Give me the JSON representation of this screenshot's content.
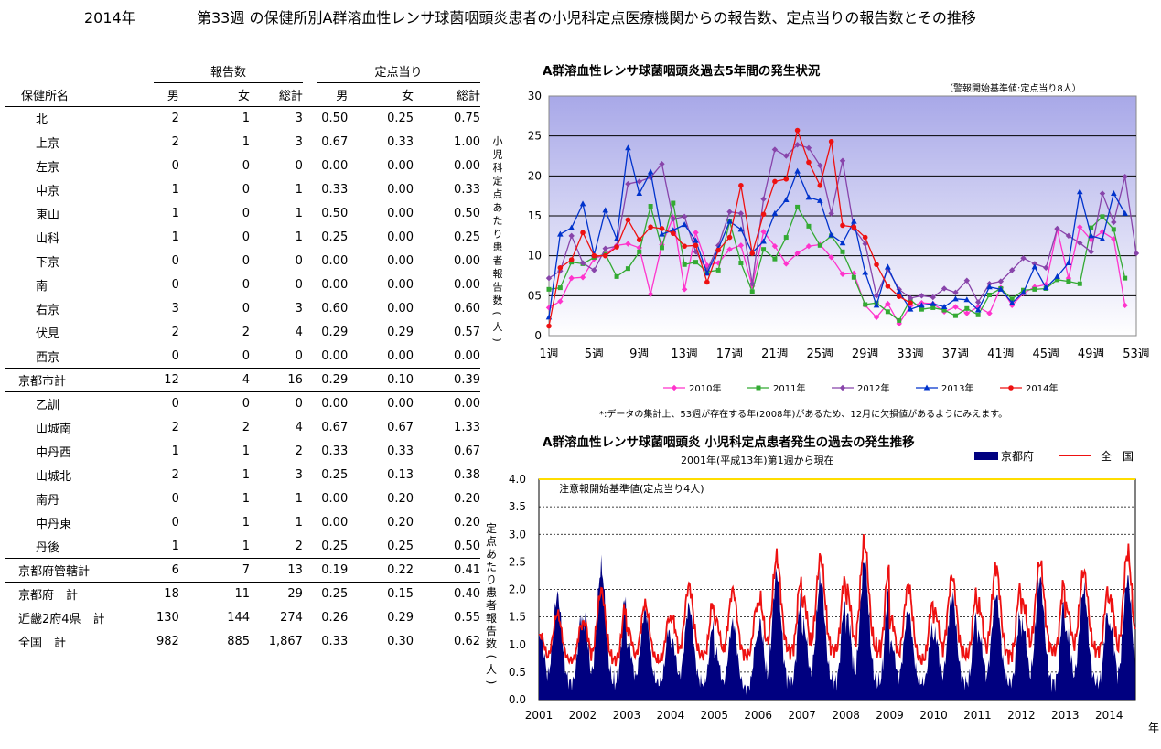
{
  "header": {
    "year": "2014年",
    "title": "第33週 の保健所別A群溶血性レンサ球菌咽頭炎患者の小児科定点医療機関からの報告数、定点当りの報告数とその推移"
  },
  "table": {
    "group_reports": "報告数",
    "group_per_point": "定点当り",
    "col_name": "保健所名",
    "col_male": "男",
    "col_female": "女",
    "col_total": "総計",
    "col_male2": "男",
    "col_female2": "女",
    "col_total2": "総計",
    "rows": [
      {
        "name": "北",
        "m": "2",
        "f": "1",
        "t": "3",
        "pm": "0.50",
        "pf": "0.25",
        "pt": "0.75"
      },
      {
        "name": "上京",
        "m": "2",
        "f": "1",
        "t": "3",
        "pm": "0.67",
        "pf": "0.33",
        "pt": "1.00"
      },
      {
        "name": "左京",
        "m": "0",
        "f": "0",
        "t": "0",
        "pm": "0.00",
        "pf": "0.00",
        "pt": "0.00"
      },
      {
        "name": "中京",
        "m": "1",
        "f": "0",
        "t": "1",
        "pm": "0.33",
        "pf": "0.00",
        "pt": "0.33"
      },
      {
        "name": "東山",
        "m": "1",
        "f": "0",
        "t": "1",
        "pm": "0.50",
        "pf": "0.00",
        "pt": "0.50"
      },
      {
        "name": "山科",
        "m": "1",
        "f": "0",
        "t": "1",
        "pm": "0.25",
        "pf": "0.00",
        "pt": "0.25"
      },
      {
        "name": "下京",
        "m": "0",
        "f": "0",
        "t": "0",
        "pm": "0.00",
        "pf": "0.00",
        "pt": "0.00"
      },
      {
        "name": "南",
        "m": "0",
        "f": "0",
        "t": "0",
        "pm": "0.00",
        "pf": "0.00",
        "pt": "0.00"
      },
      {
        "name": "右京",
        "m": "3",
        "f": "0",
        "t": "3",
        "pm": "0.60",
        "pf": "0.00",
        "pt": "0.60"
      },
      {
        "name": "伏見",
        "m": "2",
        "f": "2",
        "t": "4",
        "pm": "0.29",
        "pf": "0.29",
        "pt": "0.57"
      },
      {
        "name": "西京",
        "m": "0",
        "f": "0",
        "t": "0",
        "pm": "0.00",
        "pf": "0.00",
        "pt": "0.00"
      },
      {
        "name": "京都市計",
        "m": "12",
        "f": "4",
        "t": "16",
        "pm": "0.29",
        "pf": "0.10",
        "pt": "0.39",
        "total": true
      },
      {
        "name": "乙訓",
        "m": "0",
        "f": "0",
        "t": "0",
        "pm": "0.00",
        "pf": "0.00",
        "pt": "0.00"
      },
      {
        "name": "山城南",
        "m": "2",
        "f": "2",
        "t": "4",
        "pm": "0.67",
        "pf": "0.67",
        "pt": "1.33"
      },
      {
        "name": "中丹西",
        "m": "1",
        "f": "1",
        "t": "2",
        "pm": "0.33",
        "pf": "0.33",
        "pt": "0.67"
      },
      {
        "name": "山城北",
        "m": "2",
        "f": "1",
        "t": "3",
        "pm": "0.25",
        "pf": "0.13",
        "pt": "0.38"
      },
      {
        "name": "南丹",
        "m": "0",
        "f": "1",
        "t": "1",
        "pm": "0.00",
        "pf": "0.20",
        "pt": "0.20"
      },
      {
        "name": "中丹東",
        "m": "0",
        "f": "1",
        "t": "1",
        "pm": "0.00",
        "pf": "0.20",
        "pt": "0.20"
      },
      {
        "name": "丹後",
        "m": "1",
        "f": "1",
        "t": "2",
        "pm": "0.25",
        "pf": "0.25",
        "pt": "0.50"
      },
      {
        "name": "京都府管轄計",
        "m": "6",
        "f": "7",
        "t": "13",
        "pm": "0.19",
        "pf": "0.22",
        "pt": "0.41",
        "total": true
      },
      {
        "name": "京都府　計",
        "m": "18",
        "f": "11",
        "t": "29",
        "pm": "0.25",
        "pf": "0.15",
        "pt": "0.40",
        "total": true
      },
      {
        "name": "近畿2府4県　計",
        "m": "130",
        "f": "144",
        "t": "274",
        "pm": "0.26",
        "pf": "0.29",
        "pt": "0.55",
        "total": true
      },
      {
        "name": "全国　計",
        "m": "982",
        "f": "885",
        "t": "1,867",
        "pm": "0.33",
        "pf": "0.30",
        "pt": "0.62",
        "total": true
      }
    ]
  },
  "chart_data": [
    {
      "type": "line",
      "title": "A群溶血性レンサ球菌咽頭炎過去5年間の発生状況",
      "note": "（警報開始基準値:定点当り8人）",
      "ylabel": "小児科定点あたり患者報告数(人)",
      "ylim": [
        0,
        30
      ],
      "yticks": [
        "0",
        "05",
        "10",
        "15",
        "20",
        "25",
        "30"
      ],
      "xlim": [
        1,
        53
      ],
      "xticks": [
        {
          "week": 1,
          "label": "1週"
        },
        {
          "week": 5,
          "label": "5週"
        },
        {
          "week": 9,
          "label": "9週"
        },
        {
          "week": 13,
          "label": "13週"
        },
        {
          "week": 17,
          "label": "17週"
        },
        {
          "week": 21,
          "label": "21週"
        },
        {
          "week": 25,
          "label": "25週"
        },
        {
          "week": 29,
          "label": "29週"
        },
        {
          "week": 33,
          "label": "33週"
        },
        {
          "week": 37,
          "label": "37週"
        },
        {
          "week": 41,
          "label": "41週"
        },
        {
          "week": 45,
          "label": "45週"
        },
        {
          "week": 49,
          "label": "49週"
        },
        {
          "week": 53,
          "label": "53週"
        }
      ],
      "footnote": "*:データの集計上、53週が存在する年(2008年)があるため、12月に欠損値があるようにみえます。",
      "series": [
        {
          "name": "2010年",
          "color": "#ff33cc",
          "marker": "diamond",
          "values": [
            3.5,
            4.3,
            7.2,
            7.3,
            9.6,
            10.2,
            11.3,
            11.5,
            11.0,
            5.2,
            11.4,
            14.8,
            5.8,
            12.9,
            8.8,
            9.1,
            10.8,
            11.3,
            6.2,
            13.0,
            11.2,
            9.0,
            10.3,
            11.2,
            11.4,
            9.8,
            7.7,
            7.8,
            3.8,
            2.3,
            4.0,
            1.5,
            3.7,
            4.1,
            4.0,
            3.0,
            3.6,
            2.8,
            3.6,
            2.8,
            6.0,
            3.8,
            5.3,
            6.1,
            6.4,
            13.3,
            7.2,
            13.6,
            12.0,
            13.0,
            12.1,
            3.8
          ]
        },
        {
          "name": "2011年",
          "color": "#33aa33",
          "marker": "square",
          "values": [
            5.8,
            6.0,
            9.2,
            9.0,
            9.8,
            10.2,
            7.4,
            8.4,
            10.5,
            16.2,
            11.0,
            16.6,
            8.9,
            9.2,
            8.0,
            8.2,
            14.3,
            9.1,
            5.5,
            10.8,
            9.6,
            12.3,
            16.1,
            13.7,
            11.3,
            12.5,
            10.5,
            7.3,
            3.9,
            4.1,
            3.0,
            1.9,
            4.5,
            3.3,
            3.5,
            3.2,
            2.5,
            3.4,
            2.6,
            5.1,
            5.9,
            4.6,
            5.7,
            5.8,
            5.9,
            7.0,
            6.8,
            6.5,
            13.5,
            14.9,
            13.3,
            7.2
          ]
        },
        {
          "name": "2012年",
          "color": "#8844aa",
          "marker": "diamond",
          "values": [
            7.2,
            8.1,
            12.5,
            9.1,
            8.2,
            10.9,
            11.2,
            19.0,
            19.3,
            19.8,
            21.5,
            14.6,
            14.9,
            10.5,
            8.2,
            11.3,
            15.5,
            15.3,
            6.5,
            17.1,
            23.3,
            22.5,
            23.9,
            23.5,
            21.3,
            15.3,
            21.9,
            13.4,
            11.5,
            5.0,
            8.3,
            5.8,
            4.7,
            5.0,
            4.8,
            5.9,
            5.4,
            6.9,
            4.2,
            6.5,
            6.8,
            8.2,
            9.7,
            9.0,
            8.5,
            13.4,
            12.5,
            11.6,
            10.5,
            17.8,
            14.2,
            19.9,
            10.3
          ]
        },
        {
          "name": "2013年",
          "color": "#0033cc",
          "marker": "triangle",
          "values": [
            2.3,
            12.7,
            13.5,
            16.5,
            10.1,
            15.7,
            12.1,
            23.5,
            17.8,
            20.5,
            12.7,
            13.2,
            13.9,
            11.9,
            7.8,
            10.9,
            14.3,
            13.3,
            10.4,
            11.8,
            15.3,
            17.0,
            20.6,
            17.3,
            16.9,
            12.6,
            11.6,
            14.3,
            7.9,
            3.8,
            8.6,
            5.5,
            3.3,
            3.8,
            4.0,
            3.6,
            4.6,
            4.5,
            3.2,
            6.1,
            5.8,
            4.1,
            5.4,
            8.6,
            6.0,
            7.4,
            9.1,
            18.0,
            12.5,
            12.1,
            17.8,
            15.3
          ]
        },
        {
          "name": "2014年",
          "color": "#ee1111",
          "marker": "circle",
          "values": [
            1.2,
            8.5,
            9.5,
            12.9,
            10.0,
            10.0,
            11.1,
            14.5,
            12.0,
            13.6,
            13.4,
            12.8,
            11.2,
            11.3,
            6.7,
            10.7,
            12.3,
            18.8,
            10.3,
            15.2,
            19.3,
            19.6,
            25.7,
            21.7,
            18.8,
            24.3,
            13.8,
            13.6,
            12.3,
            8.9,
            6.2,
            4.9,
            4.1
          ]
        }
      ]
    },
    {
      "type": "area",
      "title": "A群溶血性レンサ球菌咽頭炎 小児科定点患者発生の過去の発生推移",
      "subtitle": "2001年(平成13年)第1週から現在",
      "ylabel": "定点あたり患者報告数(人)",
      "xlabel": "年",
      "ylim": [
        0,
        4
      ],
      "yticks": [
        "0.0",
        "0.5",
        "1.0",
        "1.5",
        "2.0",
        "2.5",
        "3.0",
        "3.5",
        "4.0"
      ],
      "xticks": [
        "2001",
        "2002",
        "2003",
        "2004",
        "2005",
        "2006",
        "2007",
        "2008",
        "2009",
        "2010",
        "2011",
        "2012",
        "2013",
        "2014"
      ],
      "threshold": {
        "value": 4.0,
        "label": "注意報開始基準値(定点当り4人)",
        "color": "#ffdd00"
      },
      "series": [
        {
          "name": "京都府",
          "color": "#000080",
          "kind": "area"
        },
        {
          "name": "全　国",
          "color": "#ee1111",
          "kind": "line"
        }
      ],
      "yearly_peaks": {
        "kyoto": [
          1.9,
          2.4,
          1.6,
          1.7,
          1.4,
          2.3,
          2.2,
          2.5,
          1.6,
          1.9,
          1.9,
          2.2,
          2.0,
          2.2
        ],
        "national": [
          1.6,
          2.1,
          1.8,
          2.2,
          2.1,
          2.8,
          2.8,
          3.1,
          2.2,
          2.4,
          2.6,
          2.7,
          2.5,
          2.9
        ]
      },
      "yearly_lows": {
        "kyoto": [
          0.3,
          0.3,
          0.3,
          0.3,
          0.2,
          0.3,
          0.3,
          0.3,
          0.3,
          0.3,
          0.3,
          0.3,
          0.3,
          0.3
        ],
        "national": [
          0.6,
          0.6,
          0.6,
          0.7,
          0.7,
          0.8,
          0.8,
          0.8,
          0.6,
          0.7,
          0.7,
          0.8,
          0.8,
          0.7
        ]
      }
    }
  ]
}
